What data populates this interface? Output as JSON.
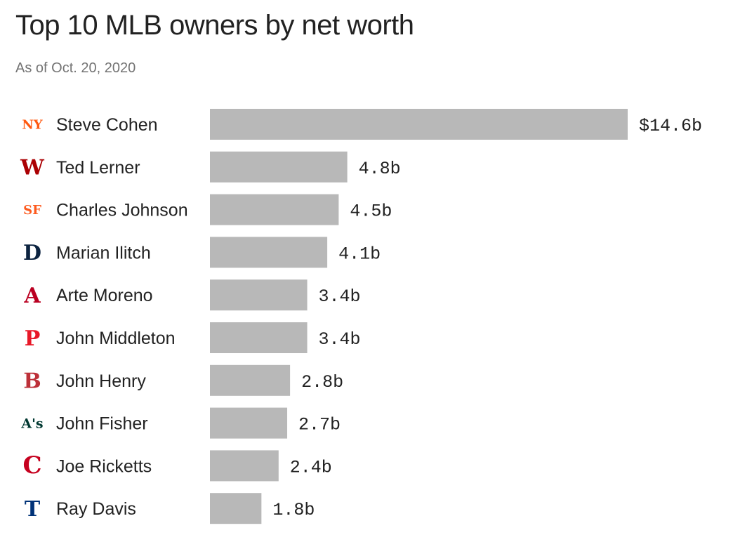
{
  "chart_data": {
    "type": "bar",
    "orientation": "horizontal",
    "title": "Top 10 MLB owners by net worth",
    "subtitle": "As of Oct. 20, 2020",
    "categories": [
      "Steve Cohen",
      "Ted Lerner",
      "Charles Johnson",
      "Marian Ilitch",
      "Arte Moreno",
      "John Middleton",
      "John Henry",
      "John Fisher",
      "Joe Ricketts",
      "Ray Davis"
    ],
    "values": [
      14.6,
      4.8,
      4.5,
      4.1,
      3.4,
      3.4,
      2.8,
      2.7,
      2.4,
      1.8
    ],
    "value_labels": [
      "$14.6b",
      "4.8b",
      "4.5b",
      "4.1b",
      "3.4b",
      "3.4b",
      "2.8b",
      "2.7b",
      "2.4b",
      "1.8b"
    ],
    "bar_color": "#b8b8b8",
    "grid": false,
    "legend": "none",
    "xlim": [
      0,
      14.6
    ]
  },
  "logos": [
    {
      "icon": "mets-logo-icon",
      "glyph": "NY",
      "color": "#ff5910"
    },
    {
      "icon": "nationals-logo-icon",
      "glyph": "W",
      "color": "#ab0003"
    },
    {
      "icon": "giants-logo-icon",
      "glyph": "SF",
      "color": "#fd5a1e"
    },
    {
      "icon": "tigers-logo-icon",
      "glyph": "D",
      "color": "#0c2340"
    },
    {
      "icon": "angels-logo-icon",
      "glyph": "A",
      "color": "#ba0021"
    },
    {
      "icon": "phillies-logo-icon",
      "glyph": "P",
      "color": "#e81828"
    },
    {
      "icon": "red-sox-logo-icon",
      "glyph": "B",
      "color": "#bd3039"
    },
    {
      "icon": "athletics-logo-icon",
      "glyph": "A's",
      "color": "#003831"
    },
    {
      "icon": "reds-logo-icon",
      "glyph": "C",
      "color": "#c6011f"
    },
    {
      "icon": "rangers-logo-icon",
      "glyph": "T",
      "color": "#003278"
    }
  ]
}
